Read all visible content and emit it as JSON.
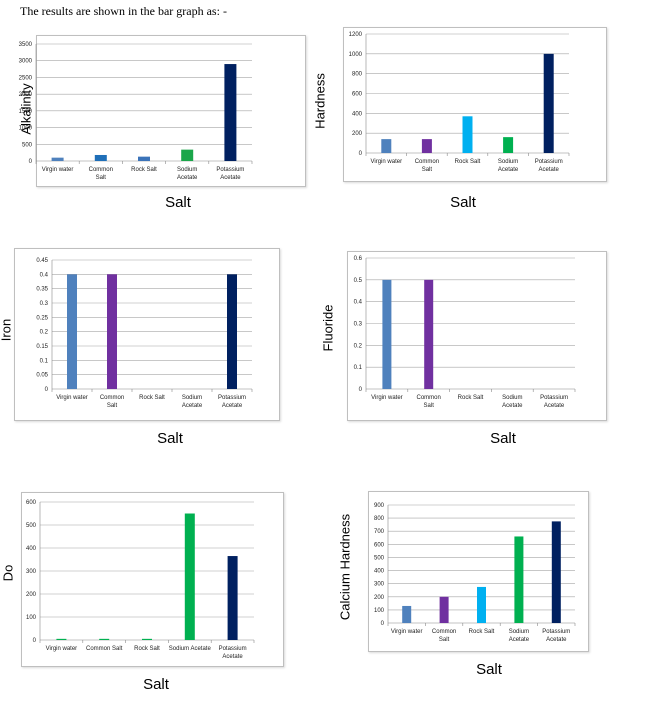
{
  "heading": "The results are shown in the bar graph as: -",
  "categories_default": [],
  "chart_data": [
    {
      "type": "bar",
      "categories": [
        [
          "Virgin water"
        ],
        [
          "Common",
          "Salt"
        ],
        [
          "Rock Salt"
        ],
        [
          "Sodium",
          "Acetate"
        ],
        [
          "Potassium",
          "Acetate"
        ]
      ],
      "values": [
        100,
        180,
        130,
        340,
        2900
      ],
      "colors": [
        "#4f81bd",
        "#1f6fb8",
        "#3b73b9",
        "#1aa64a",
        "#002060"
      ],
      "ylabel": "Alkalinity",
      "xlabel": "Salt",
      "ylim": [
        0,
        3500
      ],
      "yticks": [
        0,
        500,
        1000,
        1500,
        2000,
        2500,
        3000,
        3500
      ]
    },
    {
      "type": "bar",
      "categories": [
        [
          "Virgin water"
        ],
        [
          "Common",
          "Salt"
        ],
        [
          "Rock Salt"
        ],
        [
          "Sodium",
          "Acetate"
        ],
        [
          "Potassium",
          "Acetate"
        ]
      ],
      "values": [
        140,
        140,
        370,
        160,
        1000
      ],
      "colors": [
        "#4f81bd",
        "#7030a0",
        "#00b0f0",
        "#00b050",
        "#002060"
      ],
      "ylabel": "Hardness",
      "xlabel": "Salt",
      "ylim": [
        0,
        1200
      ],
      "yticks": [
        0,
        200,
        400,
        600,
        800,
        1000,
        1200
      ]
    },
    {
      "type": "bar",
      "categories": [
        [
          "Virgin water"
        ],
        [
          "Common",
          "Salt"
        ],
        [
          "Rock Salt"
        ],
        [
          "Sodium",
          "Acetate"
        ],
        [
          "Potassium",
          "Acetate"
        ]
      ],
      "values": [
        0.4,
        0.4,
        0,
        0,
        0.4
      ],
      "colors": [
        "#4f81bd",
        "#7030a0",
        "#00b0f0",
        "#00b050",
        "#002060"
      ],
      "ylabel": "Iron",
      "xlabel": "Salt",
      "ylim": [
        0,
        0.45
      ],
      "yticks": [
        0,
        0.05,
        0.1,
        0.15,
        0.2,
        0.25,
        0.3,
        0.35,
        0.4,
        0.45
      ]
    },
    {
      "type": "bar",
      "categories": [
        [
          "Virgin water"
        ],
        [
          "Common",
          "Salt"
        ],
        [
          "Rock Salt"
        ],
        [
          "Sodium",
          "Acetate"
        ],
        [
          "Potassium",
          "Acetate"
        ]
      ],
      "values": [
        0.5,
        0.5,
        0,
        0,
        0
      ],
      "colors": [
        "#4f81bd",
        "#7030a0",
        "#00b0f0",
        "#00b050",
        "#002060"
      ],
      "ylabel": "Fluoride",
      "xlabel": "Salt",
      "ylim": [
        0,
        0.6
      ],
      "yticks": [
        0,
        0.1,
        0.2,
        0.3,
        0.4,
        0.5,
        0.6
      ]
    },
    {
      "type": "bar",
      "categories": [
        [
          "Virgin water"
        ],
        [
          "Common Salt"
        ],
        [
          "Rock Salt"
        ],
        [
          "Sodium Acetate"
        ],
        [
          "Potassium",
          "Acetate"
        ]
      ],
      "values": [
        5,
        5,
        5,
        550,
        365
      ],
      "colors": [
        "#00b050",
        "#00b050",
        "#00b050",
        "#00b050",
        "#002060"
      ],
      "ylabel": "Do",
      "xlabel": "Salt",
      "ylim": [
        0,
        600
      ],
      "yticks": [
        0,
        100,
        200,
        300,
        400,
        500,
        600
      ]
    },
    {
      "type": "bar",
      "categories": [
        [
          "Virgin water"
        ],
        [
          "Common",
          "Salt"
        ],
        [
          "Rock Salt"
        ],
        [
          "Sodium",
          "Acetate"
        ],
        [
          "Potassium",
          "Acetate"
        ]
      ],
      "values": [
        130,
        200,
        275,
        660,
        775
      ],
      "colors": [
        "#4f81bd",
        "#7030a0",
        "#00b0f0",
        "#00b050",
        "#002060"
      ],
      "ylabel": "Calcium Hardness",
      "xlabel": "Salt",
      "ylim": [
        0,
        900
      ],
      "yticks": [
        0,
        100,
        200,
        300,
        400,
        500,
        600,
        700,
        800,
        900
      ]
    }
  ]
}
